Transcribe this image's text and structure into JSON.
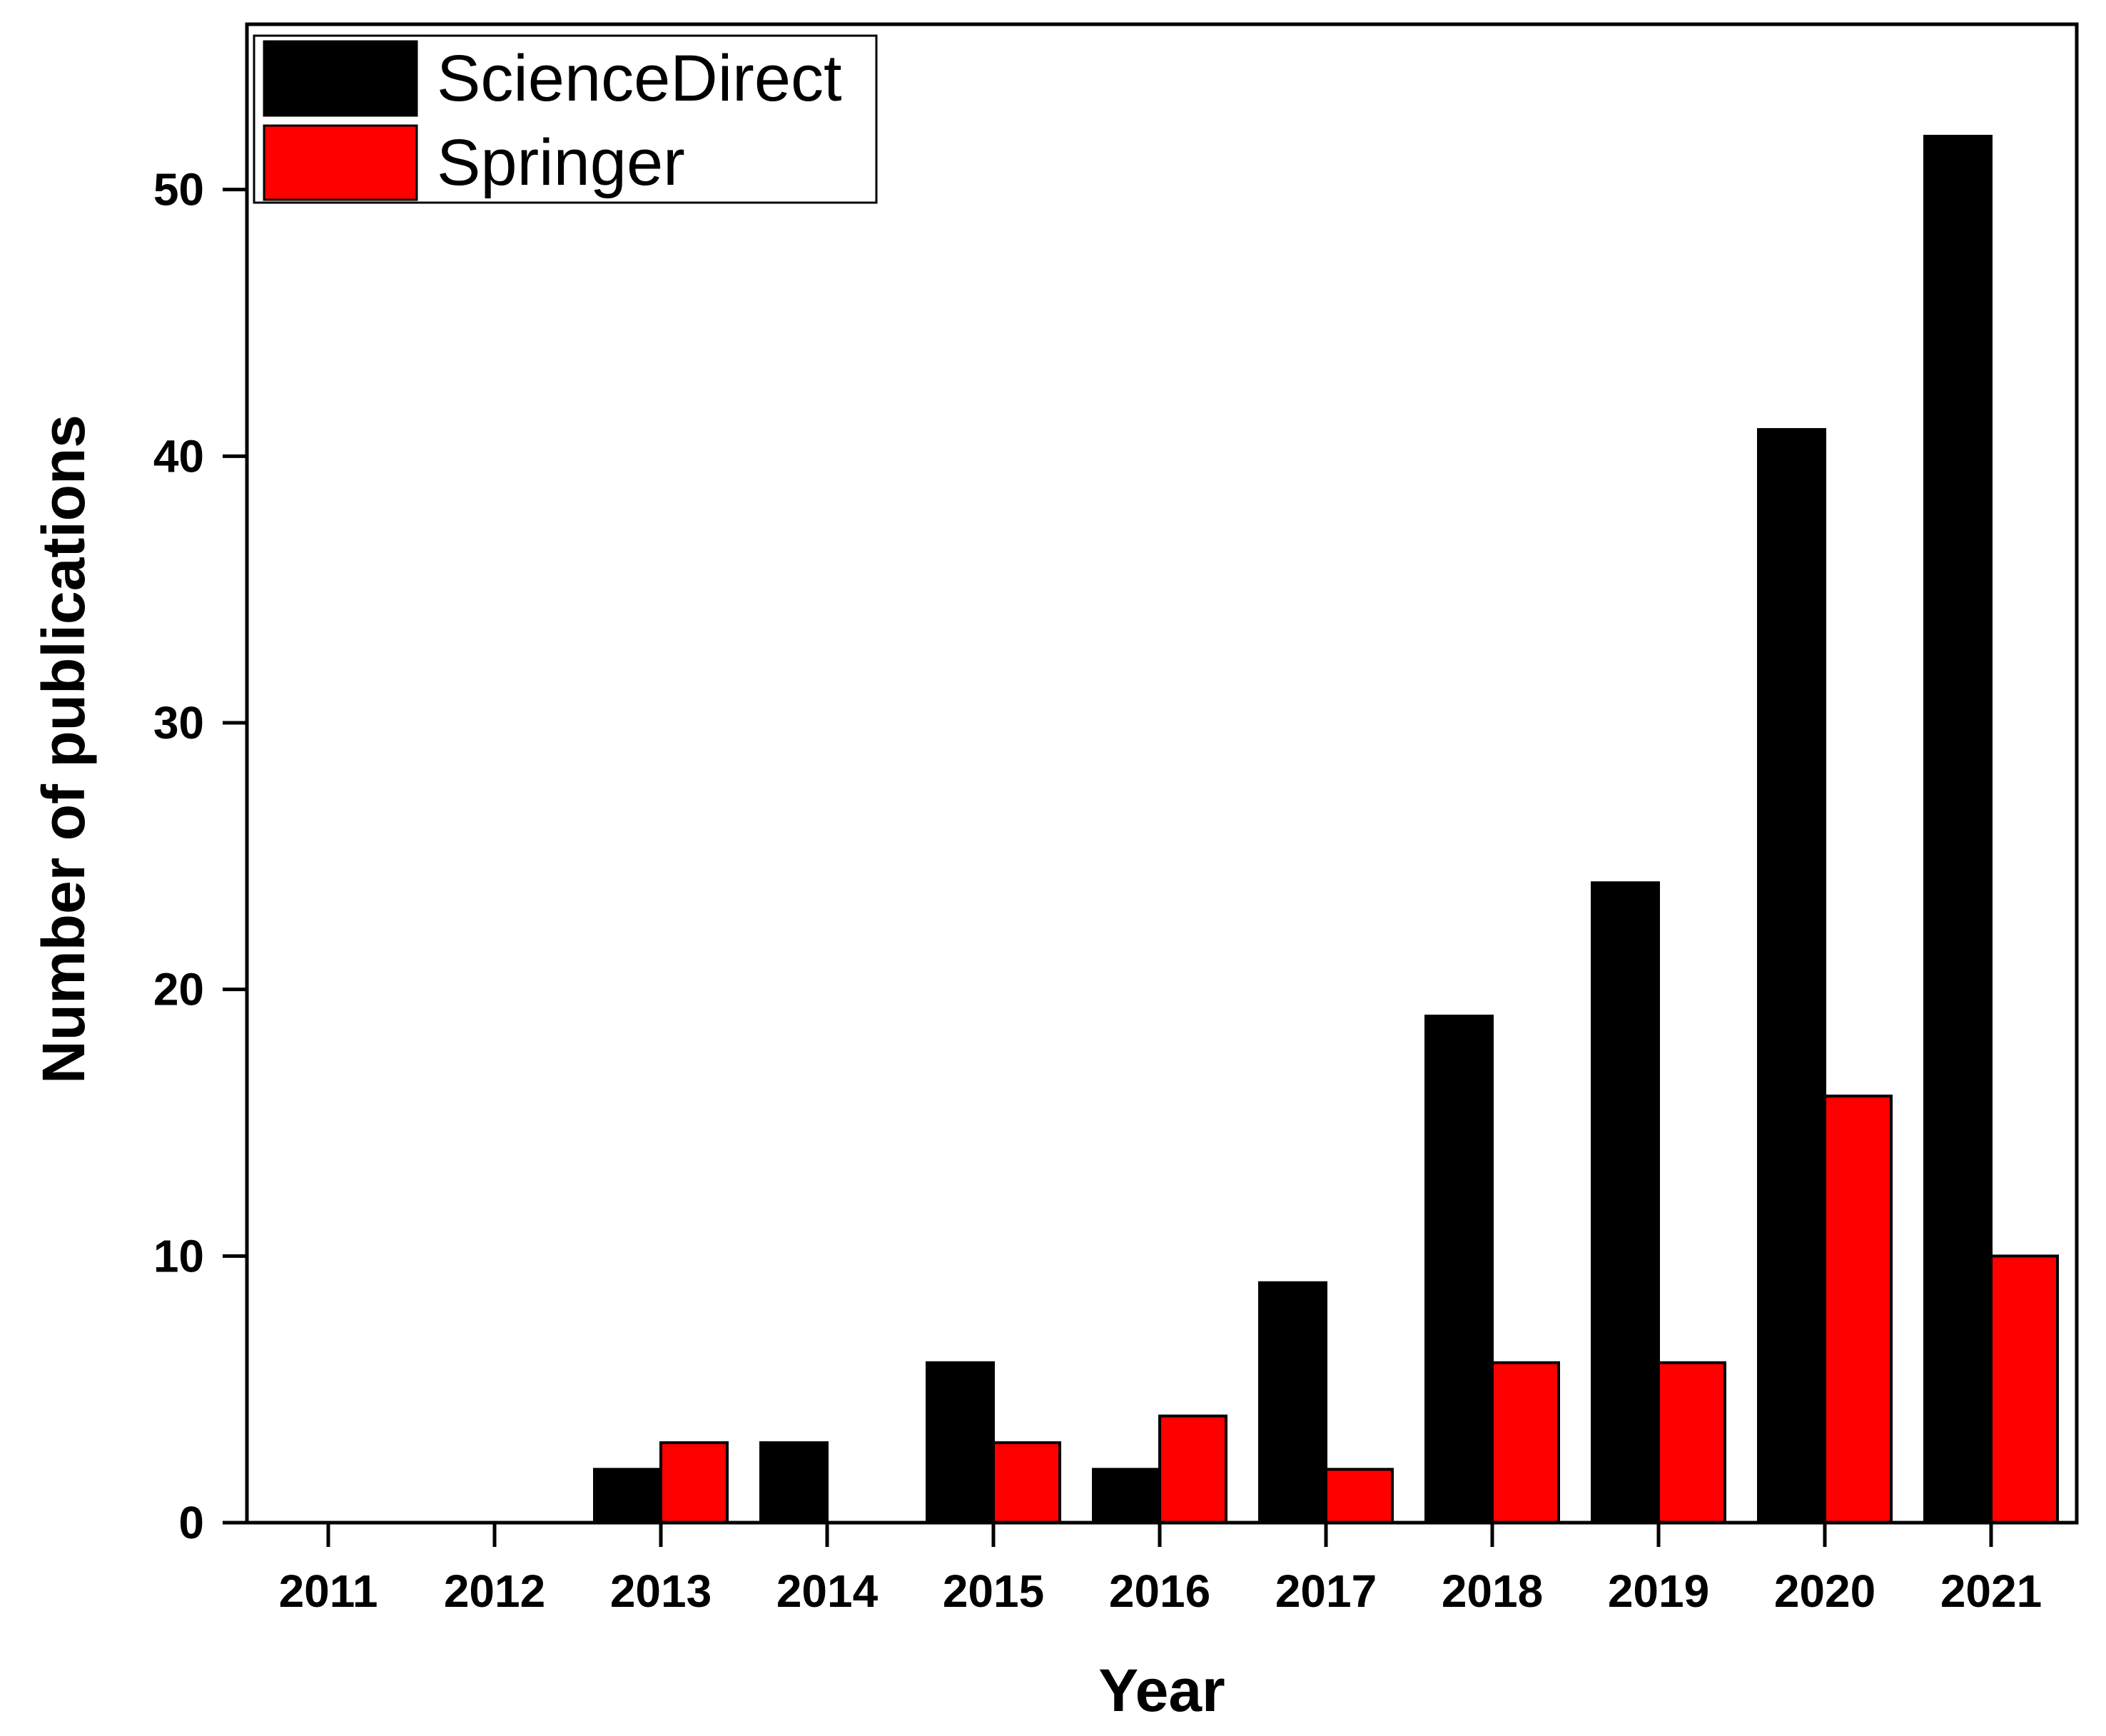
{
  "chart_data": {
    "type": "bar",
    "title": "",
    "xlabel": "Year",
    "ylabel": "Number of publications",
    "categories": [
      "2011",
      "2012",
      "2013",
      "2014",
      "2015",
      "2016",
      "2017",
      "2018",
      "2019",
      "2020",
      "2021"
    ],
    "series": [
      {
        "name": "ScienceDirect",
        "color": "#000000",
        "values": [
          0,
          0,
          2,
          3,
          6,
          2,
          9,
          19,
          24,
          41,
          52
        ]
      },
      {
        "name": "Springer",
        "color": "#ff0000",
        "values": [
          0,
          0,
          3,
          0,
          3,
          4,
          2,
          6,
          6,
          16,
          10
        ]
      }
    ],
    "ylim": [
      0,
      56.2
    ],
    "yticks": [
      "0",
      "10",
      "20",
      "30",
      "40",
      "50"
    ],
    "grid": false,
    "legend_position": "top-left"
  }
}
